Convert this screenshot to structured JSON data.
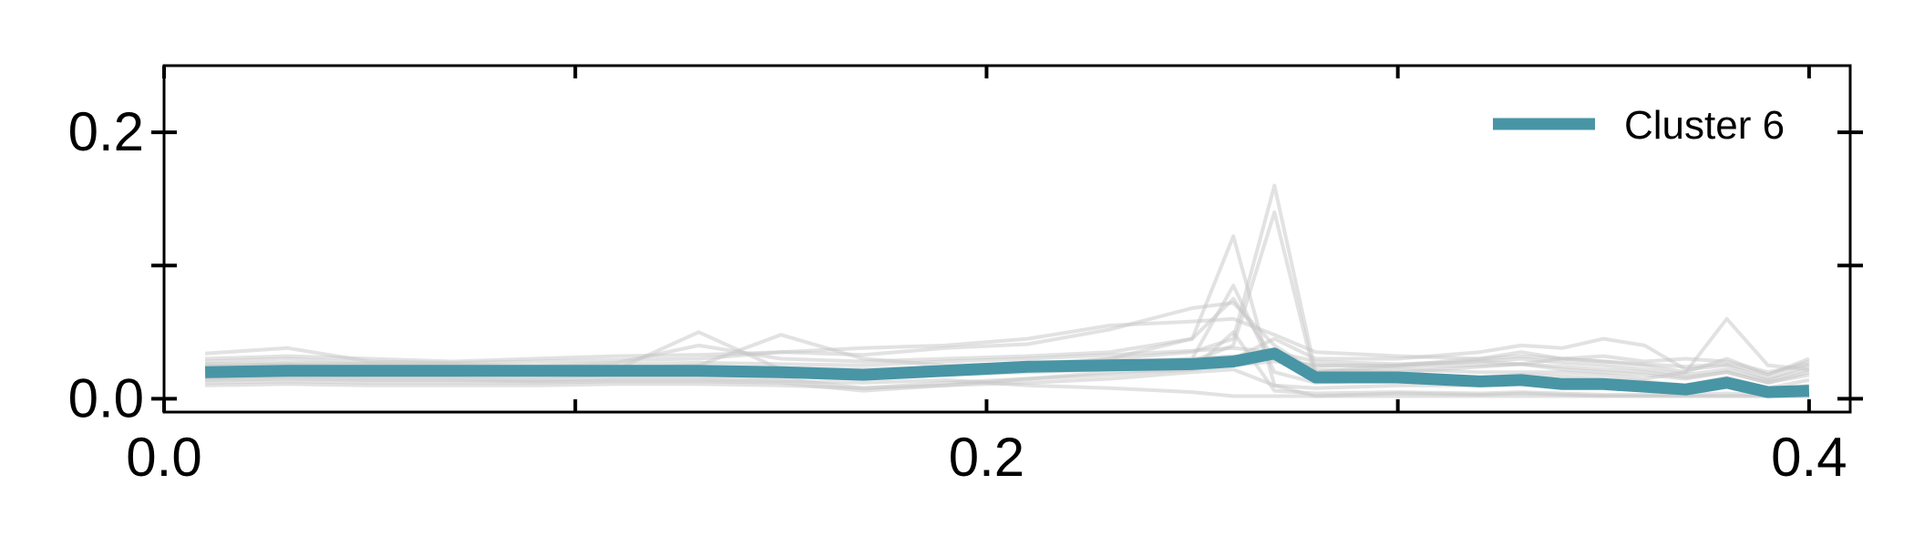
{
  "chart_data": {
    "type": "line",
    "title": "",
    "xlabel": "",
    "ylabel": "",
    "xlim": [
      0.0,
      0.41
    ],
    "ylim": [
      -0.01,
      0.25
    ],
    "x_ticks": [
      {
        "value": 0.0,
        "label": "0.0"
      },
      {
        "value": 0.1,
        "label": ""
      },
      {
        "value": 0.2,
        "label": "0.2"
      },
      {
        "value": 0.3,
        "label": ""
      },
      {
        "value": 0.4,
        "label": "0.4"
      }
    ],
    "y_ticks": [
      {
        "value": 0.0,
        "label": "0.0"
      },
      {
        "value": 0.1,
        "label": ""
      },
      {
        "value": 0.2,
        "label": "0.2"
      }
    ],
    "grid": false,
    "legend": {
      "position": "top-right"
    },
    "colors": {
      "highlight": "#4895a5",
      "background": "#c6c6c6",
      "axis": "#000000"
    },
    "x": [
      0.01,
      0.03,
      0.05,
      0.07,
      0.09,
      0.11,
      0.13,
      0.15,
      0.17,
      0.19,
      0.21,
      0.23,
      0.25,
      0.26,
      0.27,
      0.28,
      0.3,
      0.32,
      0.33,
      0.34,
      0.35,
      0.36,
      0.37,
      0.38,
      0.39,
      0.4
    ],
    "series": [
      {
        "name": "Cluster 6",
        "highlight": true,
        "values": [
          0.02,
          0.021,
          0.021,
          0.021,
          0.021,
          0.021,
          0.021,
          0.02,
          0.018,
          0.021,
          0.024,
          0.025,
          0.026,
          0.028,
          0.034,
          0.016,
          0.016,
          0.013,
          0.014,
          0.011,
          0.011,
          0.009,
          0.007,
          0.012,
          0.005,
          0.006
        ]
      },
      {
        "values": [
          0.034,
          0.038,
          0.028,
          0.027,
          0.028,
          0.029,
          0.03,
          0.035,
          0.033,
          0.038,
          0.041,
          0.052,
          0.068,
          0.072,
          0.04,
          0.02,
          0.025,
          0.028,
          0.026,
          0.03,
          0.028,
          0.025,
          0.02,
          0.03,
          0.018,
          0.03
        ]
      },
      {
        "values": [
          0.028,
          0.03,
          0.027,
          0.026,
          0.025,
          0.027,
          0.04,
          0.03,
          0.028,
          0.03,
          0.032,
          0.035,
          0.045,
          0.075,
          0.03,
          0.022,
          0.02,
          0.024,
          0.026,
          0.022,
          0.02,
          0.018,
          0.015,
          0.02,
          0.012,
          0.018
        ]
      },
      {
        "values": [
          0.025,
          0.026,
          0.025,
          0.024,
          0.022,
          0.023,
          0.025,
          0.048,
          0.03,
          0.025,
          0.026,
          0.03,
          0.035,
          0.045,
          0.16,
          0.02,
          0.022,
          0.02,
          0.02,
          0.02,
          0.018,
          0.015,
          0.02,
          0.06,
          0.025,
          0.022
        ]
      },
      {
        "values": [
          0.022,
          0.024,
          0.022,
          0.021,
          0.02,
          0.022,
          0.05,
          0.022,
          0.02,
          0.024,
          0.025,
          0.027,
          0.028,
          0.04,
          0.14,
          0.015,
          0.018,
          0.016,
          0.018,
          0.017,
          0.015,
          0.013,
          0.01,
          0.016,
          0.008,
          0.014
        ]
      },
      {
        "values": [
          0.02,
          0.022,
          0.02,
          0.02,
          0.018,
          0.02,
          0.022,
          0.02,
          0.018,
          0.022,
          0.024,
          0.03,
          0.045,
          0.122,
          0.01,
          0.002,
          0.004,
          0.003,
          0.004,
          0.003,
          0.002,
          0.002,
          0.002,
          0.002,
          0.002,
          0.002
        ]
      },
      {
        "values": [
          0.018,
          0.02,
          0.019,
          0.019,
          0.018,
          0.019,
          0.02,
          0.019,
          0.017,
          0.02,
          0.022,
          0.025,
          0.03,
          0.085,
          0.02,
          0.012,
          0.014,
          0.012,
          0.013,
          0.011,
          0.01,
          0.009,
          0.008,
          0.01,
          0.006,
          0.01
        ]
      },
      {
        "values": [
          0.016,
          0.018,
          0.017,
          0.017,
          0.016,
          0.018,
          0.018,
          0.017,
          0.015,
          0.018,
          0.02,
          0.022,
          0.025,
          0.03,
          0.045,
          0.03,
          0.03,
          0.035,
          0.04,
          0.038,
          0.045,
          0.04,
          0.022,
          0.025,
          0.015,
          0.025
        ]
      },
      {
        "values": [
          0.015,
          0.016,
          0.015,
          0.015,
          0.014,
          0.016,
          0.016,
          0.015,
          0.008,
          0.01,
          0.015,
          0.02,
          0.022,
          0.025,
          0.028,
          0.025,
          0.025,
          0.03,
          0.035,
          0.03,
          0.032,
          0.028,
          0.03,
          0.028,
          0.02,
          0.026
        ]
      },
      {
        "values": [
          0.014,
          0.015,
          0.014,
          0.014,
          0.013,
          0.014,
          0.014,
          0.013,
          0.012,
          0.014,
          0.01,
          0.008,
          0.005,
          0.002,
          0.002,
          0.002,
          0.002,
          0.002,
          0.002,
          0.002,
          0.002,
          0.002,
          0.002,
          0.002,
          0.002,
          0.002
        ]
      },
      {
        "values": [
          0.012,
          0.013,
          0.012,
          0.012,
          0.012,
          0.013,
          0.013,
          0.012,
          0.006,
          0.01,
          0.012,
          0.015,
          0.02,
          0.022,
          0.01,
          0.008,
          0.01,
          0.01,
          0.012,
          0.01,
          0.009,
          0.008,
          0.006,
          0.009,
          0.004,
          0.008
        ]
      },
      {
        "values": [
          0.01,
          0.011,
          0.01,
          0.01,
          0.01,
          0.011,
          0.011,
          0.01,
          0.008,
          0.012,
          0.015,
          0.018,
          0.022,
          0.05,
          0.006,
          0.004,
          0.005,
          0.004,
          0.005,
          0.004,
          0.003,
          0.003,
          0.003,
          0.004,
          0.003,
          0.004
        ]
      },
      {
        "values": [
          0.03,
          0.032,
          0.03,
          0.028,
          0.03,
          0.032,
          0.033,
          0.035,
          0.038,
          0.04,
          0.045,
          0.055,
          0.058,
          0.06,
          0.048,
          0.035,
          0.032,
          0.03,
          0.032,
          0.03,
          0.028,
          0.026,
          0.024,
          0.026,
          0.018,
          0.028
        ]
      },
      {
        "values": [
          0.026,
          0.027,
          0.026,
          0.025,
          0.024,
          0.026,
          0.027,
          0.026,
          0.025,
          0.028,
          0.03,
          0.033,
          0.036,
          0.038,
          0.035,
          0.028,
          0.026,
          0.028,
          0.03,
          0.027,
          0.025,
          0.022,
          0.018,
          0.022,
          0.014,
          0.022
        ]
      },
      {
        "values": [
          0.024,
          0.025,
          0.024,
          0.023,
          0.023,
          0.024,
          0.024,
          0.023,
          0.022,
          0.024,
          0.026,
          0.028,
          0.03,
          0.032,
          0.03,
          0.025,
          0.024,
          0.025,
          0.026,
          0.024,
          0.022,
          0.02,
          0.016,
          0.02,
          0.012,
          0.02
        ]
      }
    ]
  }
}
